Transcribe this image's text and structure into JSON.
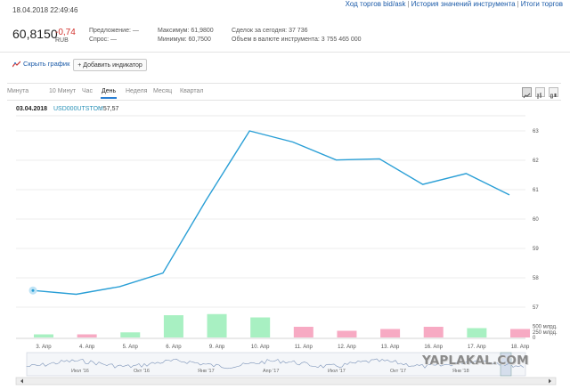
{
  "header": {
    "timestamp": "18.04.2018 22:49:46",
    "links": [
      "Ход торгов bid/ask",
      "История значений инструмента",
      "Итоги торгов"
    ],
    "separator": "|"
  },
  "quote": {
    "price": "60,8150",
    "change": "-0,74",
    "currency": "RUB",
    "offer_label": "Предложение: —",
    "bid_label": "Спрос: —",
    "max_label": "Максимум: 61,9800",
    "min_label": "Минимум: 60,7500",
    "deals_label": "Сделок за сегодня: 37 736",
    "volume_label": "Объем в валюте инструмента: 3 755 465 000"
  },
  "controls": {
    "hide_chart": "Скрыть график",
    "add_indicator": "+ Добавить индикатор"
  },
  "tabs": [
    "Минута",
    "10 Минут",
    "Час",
    "День",
    "Неделя",
    "Месяц",
    "Квартал"
  ],
  "active_tab": "День",
  "legend": {
    "date": "03.04.2018",
    "ticker": "USD000UTSTOM",
    "value": ": 57,57"
  },
  "chart_data": {
    "type": "line",
    "categories": [
      "3. Апр",
      "4. Апр",
      "5. Апр",
      "6. Апр",
      "9. Апр",
      "10. Апр",
      "11. Апр",
      "12. Апр",
      "13. Апр",
      "16. Апр",
      "17. Апр",
      "18. Апр"
    ],
    "values": [
      57.57,
      57.44,
      57.7,
      58.16,
      60.65,
      63.0,
      62.62,
      62.01,
      62.05,
      61.18,
      61.55,
      60.82
    ],
    "yticks": [
      "63",
      "62",
      "61",
      "60",
      "59",
      "58",
      "57"
    ],
    "ylim": [
      57,
      63
    ],
    "line_color": "#2a9fd6",
    "volume": {
      "values": [
        140,
        140,
        230,
        1000,
        1050,
        900,
        480,
        300,
        380,
        480,
        420,
        380
      ],
      "colors": [
        "up",
        "down",
        "up",
        "up",
        "up",
        "up",
        "down",
        "down",
        "down",
        "down",
        "up",
        "down"
      ],
      "yticks": [
        "500 млрд.",
        "250 млрд.",
        "0"
      ],
      "ylim": [
        0,
        1200
      ],
      "up_color": "#a8f0c2",
      "down_color": "#f7aac3"
    },
    "navigator_labels": [
      "Июл '16",
      "Окт '16",
      "Янв '17",
      "Апр '17",
      "Июл '17",
      "Окт '17",
      "Янв '18"
    ]
  },
  "watermark": "YAPLAKAL.COM"
}
